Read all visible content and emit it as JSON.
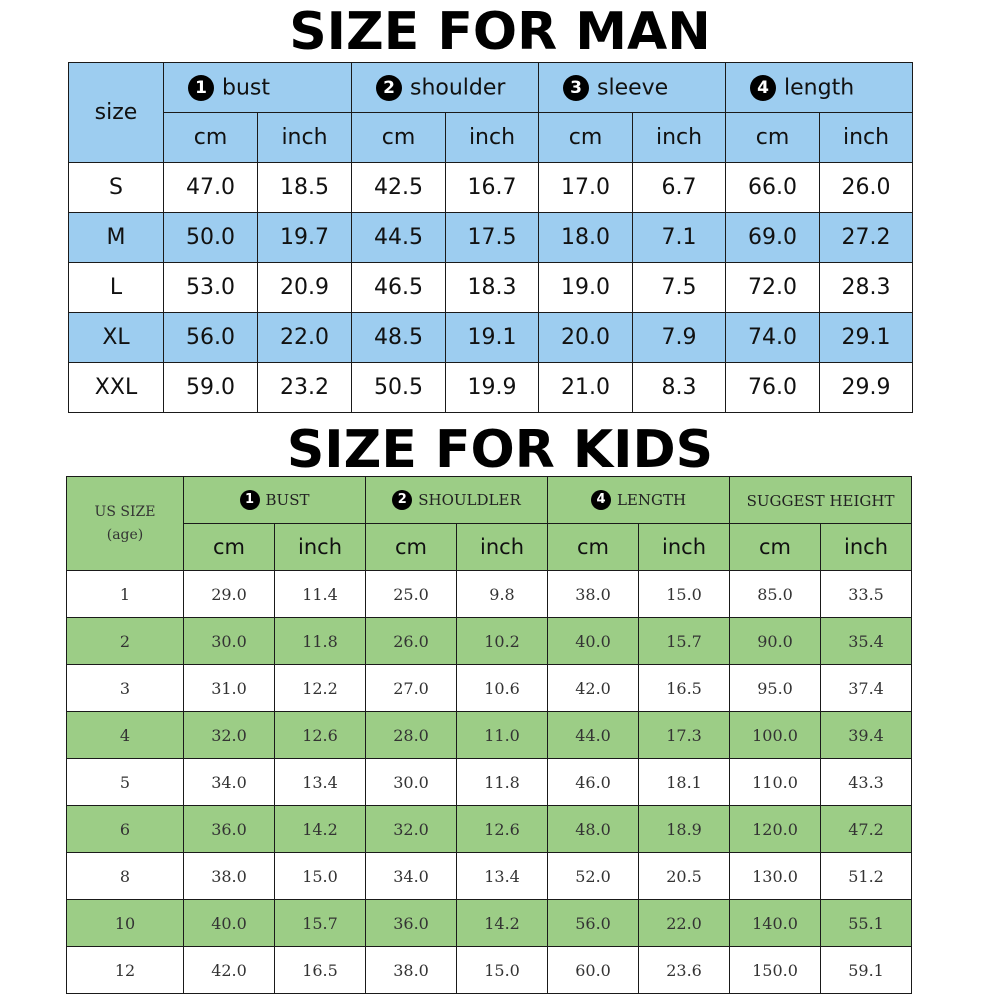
{
  "man": {
    "title": "SIZE FOR MAN",
    "size_header": "size",
    "groups": [
      {
        "num": "1",
        "label": "bust"
      },
      {
        "num": "2",
        "label": "shoulder"
      },
      {
        "num": "3",
        "label": "sleeve"
      },
      {
        "num": "4",
        "label": "length"
      }
    ],
    "units": [
      "cm",
      "inch",
      "cm",
      "inch",
      "cm",
      "inch",
      "cm",
      "inch"
    ],
    "rows": [
      [
        "S",
        "47.0",
        "18.5",
        "42.5",
        "16.7",
        "17.0",
        "6.7",
        "66.0",
        "26.0"
      ],
      [
        "M",
        "50.0",
        "19.7",
        "44.5",
        "17.5",
        "18.0",
        "7.1",
        "69.0",
        "27.2"
      ],
      [
        "L",
        "53.0",
        "20.9",
        "46.5",
        "18.3",
        "19.0",
        "7.5",
        "72.0",
        "28.3"
      ],
      [
        "XL",
        "56.0",
        "22.0",
        "48.5",
        "19.1",
        "20.0",
        "7.9",
        "74.0",
        "29.1"
      ],
      [
        "XXL",
        "59.0",
        "23.2",
        "50.5",
        "19.9",
        "21.0",
        "8.3",
        "76.0",
        "29.9"
      ]
    ],
    "colors": {
      "header_bg": "#9dcdf0",
      "alt_row_bg": "#9dcdf0"
    }
  },
  "kids": {
    "title": "SIZE FOR KIDS",
    "size_header_line1": "US SIZE",
    "size_header_line2": "(age)",
    "groups": [
      {
        "num": "1",
        "label": "BUST"
      },
      {
        "num": "2",
        "label": "SHOULDLER"
      },
      {
        "num": "4",
        "label": "LENGTH"
      },
      {
        "num": "",
        "label": "SUGGEST HEIGHT"
      }
    ],
    "units": [
      "cm",
      "inch",
      "cm",
      "inch",
      "cm",
      "inch",
      "cm",
      "inch"
    ],
    "rows": [
      [
        "1",
        "29.0",
        "11.4",
        "25.0",
        "9.8",
        "38.0",
        "15.0",
        "85.0",
        "33.5"
      ],
      [
        "2",
        "30.0",
        "11.8",
        "26.0",
        "10.2",
        "40.0",
        "15.7",
        "90.0",
        "35.4"
      ],
      [
        "3",
        "31.0",
        "12.2",
        "27.0",
        "10.6",
        "42.0",
        "16.5",
        "95.0",
        "37.4"
      ],
      [
        "4",
        "32.0",
        "12.6",
        "28.0",
        "11.0",
        "44.0",
        "17.3",
        "100.0",
        "39.4"
      ],
      [
        "5",
        "34.0",
        "13.4",
        "30.0",
        "11.8",
        "46.0",
        "18.1",
        "110.0",
        "43.3"
      ],
      [
        "6",
        "36.0",
        "14.2",
        "32.0",
        "12.6",
        "48.0",
        "18.9",
        "120.0",
        "47.2"
      ],
      [
        "8",
        "38.0",
        "15.0",
        "34.0",
        "13.4",
        "52.0",
        "20.5",
        "130.0",
        "51.2"
      ],
      [
        "10",
        "40.0",
        "15.7",
        "36.0",
        "14.2",
        "56.0",
        "22.0",
        "140.0",
        "55.1"
      ],
      [
        "12",
        "42.0",
        "16.5",
        "38.0",
        "15.0",
        "60.0",
        "23.6",
        "150.0",
        "59.1"
      ]
    ],
    "colors": {
      "header_bg": "#9ccd86",
      "alt_row_bg": "#9ccd86"
    }
  }
}
